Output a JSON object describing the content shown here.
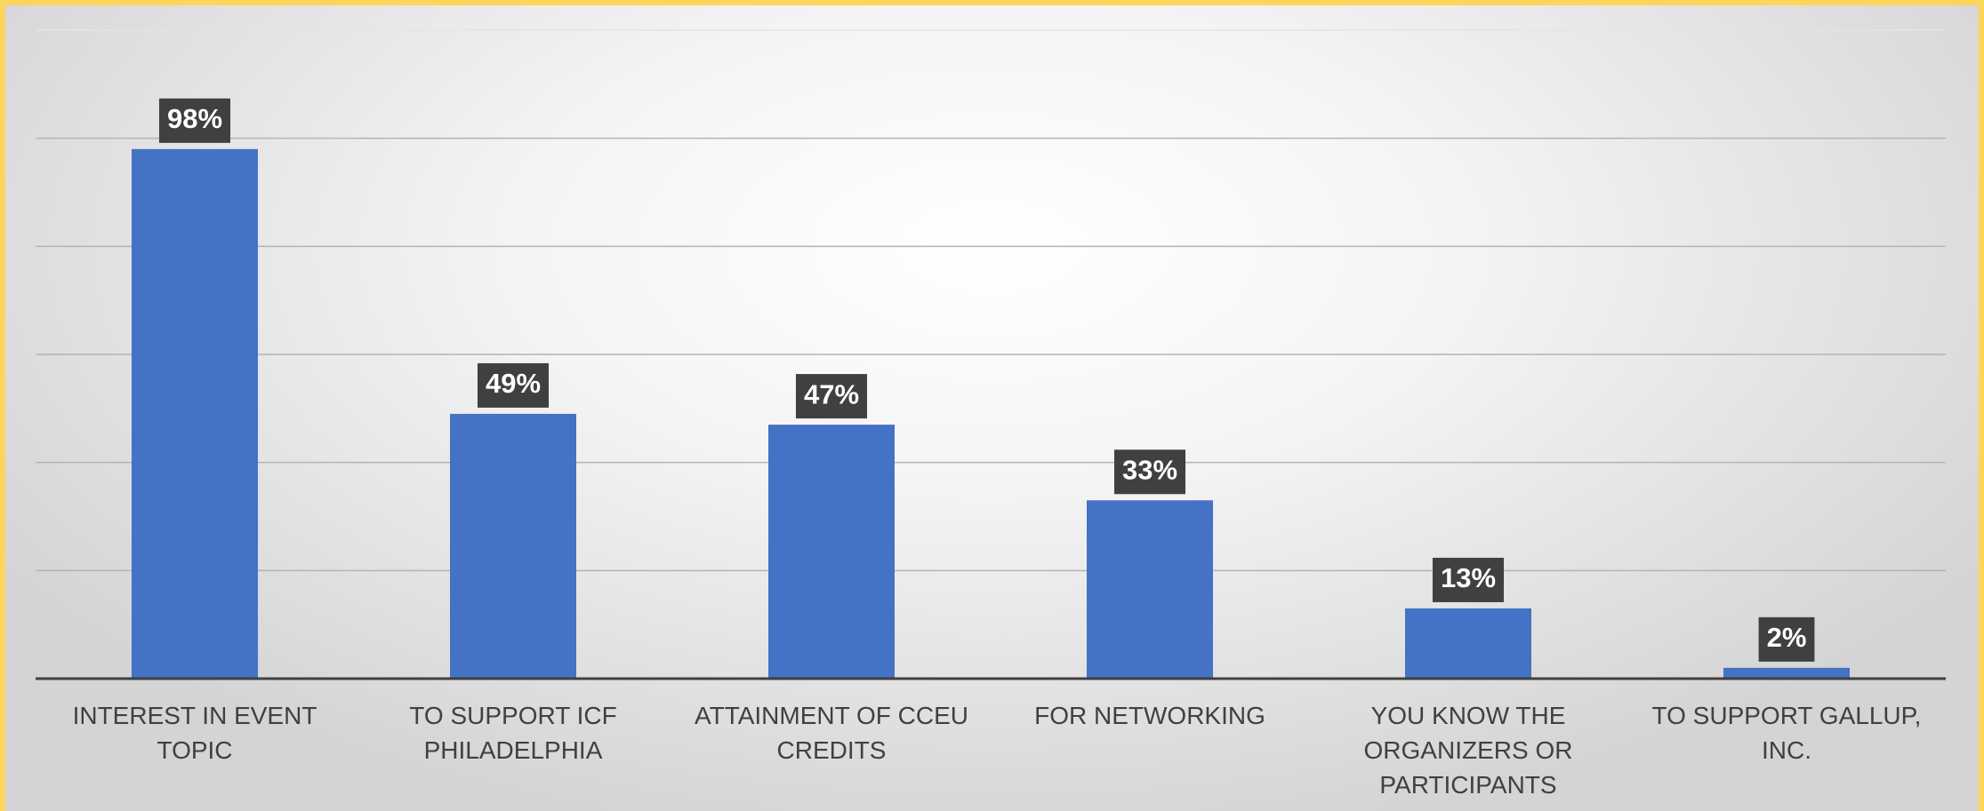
{
  "chart_data": {
    "type": "bar",
    "categories": [
      "INTEREST IN EVENT TOPIC",
      "TO SUPPORT ICF PHILADELPHIA",
      "ATTAINMENT OF CCEU CREDITS",
      "FOR NETWORKING",
      "YOU KNOW THE ORGANIZERS OR PARTICIPANTS",
      "TO SUPPORT GALLUP, INC."
    ],
    "values": [
      98,
      49,
      47,
      33,
      13,
      2
    ],
    "value_labels": [
      "98%",
      "49%",
      "47%",
      "33%",
      "13%",
      "2%"
    ],
    "color": "#4472c4",
    "ylim": [
      0,
      120
    ],
    "yticks": [
      0,
      20,
      40,
      60,
      80,
      100,
      120
    ],
    "grid": true
  }
}
